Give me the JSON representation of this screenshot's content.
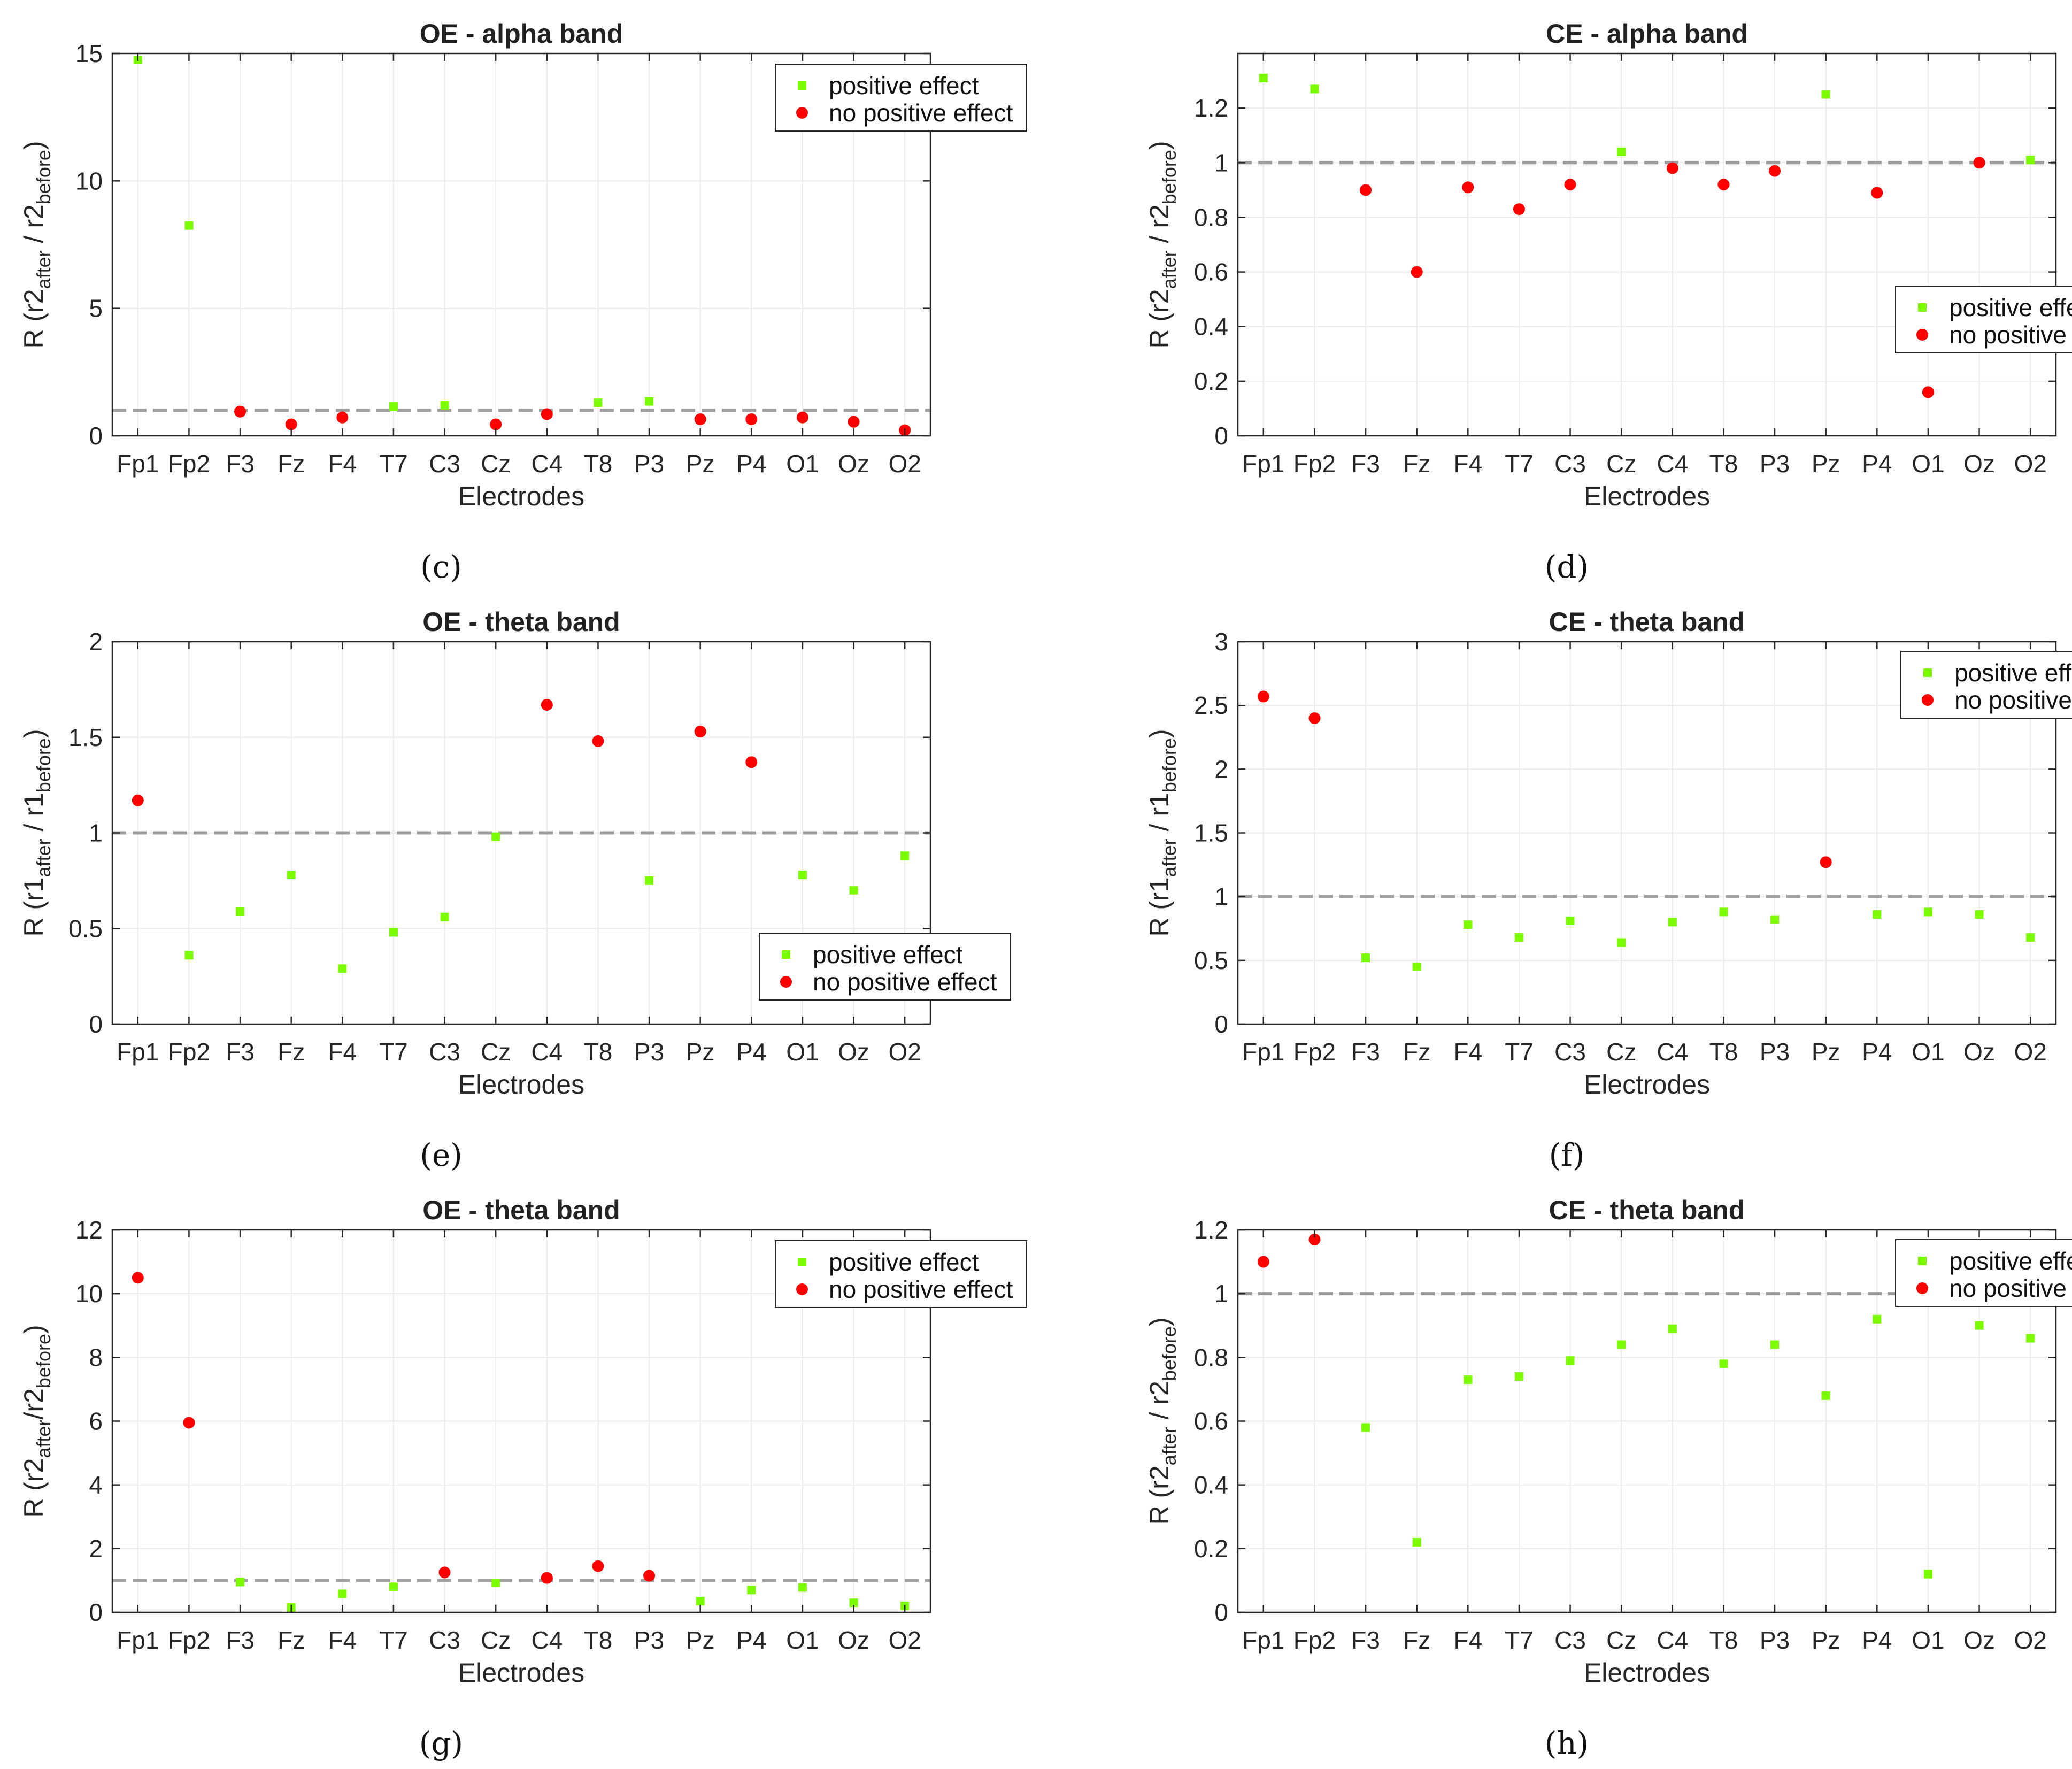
{
  "chart_data": [
    {
      "type": "scatter",
      "title": "OE - alpha band",
      "caption": "(c)",
      "xlabel": "Electrodes",
      "ylabel": {
        "prefix": "R (",
        "r": "r2",
        "sub1": "after",
        "sep": " / ",
        "sub2": "before",
        "suffix": ")"
      },
      "ylim": [
        0,
        15
      ],
      "yticks": [
        0,
        5,
        10,
        15
      ],
      "reference_line": 1,
      "grid": true,
      "legend_position": "top-right",
      "categories": [
        "Fp1",
        "Fp2",
        "F3",
        "Fz",
        "F4",
        "T7",
        "C3",
        "Cz",
        "C4",
        "T8",
        "P3",
        "Pz",
        "P4",
        "O1",
        "Oz",
        "O2"
      ],
      "values": [
        14.75,
        8.25,
        0.95,
        0.45,
        0.72,
        1.15,
        1.2,
        0.45,
        0.85,
        1.3,
        1.35,
        0.65,
        0.65,
        0.72,
        0.55,
        0.22
      ],
      "positive": [
        true,
        true,
        false,
        false,
        false,
        true,
        true,
        false,
        false,
        true,
        true,
        false,
        false,
        false,
        false,
        false
      ],
      "series": [
        {
          "name": "positive effect",
          "color": "#7cfc00"
        },
        {
          "name": "no positive effect",
          "color": "#ff0000"
        }
      ]
    },
    {
      "type": "scatter",
      "title": "CE - alpha band",
      "caption": "(d)",
      "xlabel": "Electrodes",
      "ylabel": {
        "prefix": "R (",
        "r": "r2",
        "sub1": "after",
        "sep": " / ",
        "sub2": "before",
        "suffix": ")"
      },
      "ylim": [
        0,
        1.4
      ],
      "yticks": [
        0,
        0.2,
        0.4,
        0.6,
        0.8,
        1,
        1.2
      ],
      "reference_line": 1,
      "grid": true,
      "legend_position": "lower-right",
      "categories": [
        "Fp1",
        "Fp2",
        "F3",
        "Fz",
        "F4",
        "T7",
        "C3",
        "Cz",
        "C4",
        "T8",
        "P3",
        "Pz",
        "P4",
        "O1",
        "Oz",
        "O2"
      ],
      "values": [
        1.31,
        1.27,
        0.9,
        0.6,
        0.91,
        0.83,
        0.92,
        1.04,
        0.98,
        0.92,
        0.97,
        1.25,
        0.89,
        0.16,
        1.0,
        1.01
      ],
      "positive": [
        true,
        true,
        false,
        false,
        false,
        false,
        false,
        true,
        false,
        false,
        false,
        true,
        false,
        false,
        false,
        true
      ],
      "series": [
        {
          "name": "positive effect",
          "color": "#7cfc00"
        },
        {
          "name": "no positive effect",
          "color": "#ff0000"
        }
      ]
    },
    {
      "type": "scatter",
      "title": "OE - theta band",
      "caption": "(e)",
      "xlabel": "Electrodes",
      "ylabel": {
        "prefix": "R (",
        "r": "r1",
        "sub1": "after",
        "sep": " / ",
        "sub2": "before",
        "suffix": ")"
      },
      "ylim": [
        0,
        2
      ],
      "yticks": [
        0,
        0.5,
        1,
        1.5,
        2
      ],
      "reference_line": 1,
      "grid": true,
      "legend_position": "lower-right",
      "categories": [
        "Fp1",
        "Fp2",
        "F3",
        "Fz",
        "F4",
        "T7",
        "C3",
        "Cz",
        "C4",
        "T8",
        "P3",
        "Pz",
        "P4",
        "O1",
        "Oz",
        "O2"
      ],
      "values": [
        1.17,
        0.36,
        0.59,
        0.78,
        0.29,
        0.48,
        0.56,
        0.98,
        1.67,
        1.48,
        0.75,
        1.53,
        1.37,
        0.78,
        0.7,
        0.88
      ],
      "positive": [
        false,
        true,
        true,
        true,
        true,
        true,
        true,
        true,
        false,
        false,
        true,
        false,
        false,
        true,
        true,
        true
      ],
      "series": [
        {
          "name": "positive effect",
          "color": "#7cfc00"
        },
        {
          "name": "no positive effect",
          "color": "#ff0000"
        }
      ]
    },
    {
      "type": "scatter",
      "title": "CE - theta band",
      "caption": "(f)",
      "xlabel": "Electrodes",
      "ylabel": {
        "prefix": "R (",
        "r": "r1",
        "sub1": "after",
        "sep": " / ",
        "sub2": "before",
        "suffix": ")"
      },
      "ylim": [
        0,
        3
      ],
      "yticks": [
        0,
        0.5,
        1,
        1.5,
        2,
        2.5,
        3
      ],
      "reference_line": 1,
      "grid": true,
      "legend_position": "top-right",
      "categories": [
        "Fp1",
        "Fp2",
        "F3",
        "Fz",
        "F4",
        "T7",
        "C3",
        "Cz",
        "C4",
        "T8",
        "P3",
        "Pz",
        "P4",
        "O1",
        "Oz",
        "O2"
      ],
      "values": [
        2.57,
        2.4,
        0.52,
        0.45,
        0.78,
        0.68,
        0.81,
        0.64,
        0.8,
        0.88,
        0.82,
        1.27,
        0.86,
        0.88,
        0.86,
        0.68
      ],
      "positive": [
        false,
        false,
        true,
        true,
        true,
        true,
        true,
        true,
        true,
        true,
        true,
        false,
        true,
        true,
        true,
        true
      ],
      "series": [
        {
          "name": "positive effect",
          "color": "#7cfc00"
        },
        {
          "name": "no positive effect",
          "color": "#ff0000"
        }
      ]
    },
    {
      "type": "scatter",
      "title": "OE - theta band",
      "caption": "(g)",
      "xlabel": "Electrodes",
      "ylabel": {
        "prefix": "R (",
        "r": "r2",
        "sub1": "after",
        "sep": "/",
        "sub2": "before",
        "suffix": ")"
      },
      "ylim": [
        0,
        12
      ],
      "yticks": [
        0,
        2,
        4,
        6,
        8,
        10,
        12
      ],
      "reference_line": 1,
      "grid": true,
      "legend_position": "top-right",
      "categories": [
        "Fp1",
        "Fp2",
        "F3",
        "Fz",
        "F4",
        "T7",
        "C3",
        "Cz",
        "C4",
        "T8",
        "P3",
        "Pz",
        "P4",
        "O1",
        "Oz",
        "O2"
      ],
      "values": [
        10.5,
        5.95,
        0.95,
        0.15,
        0.58,
        0.8,
        1.25,
        0.92,
        1.08,
        1.45,
        1.15,
        0.35,
        0.7,
        0.78,
        0.3,
        0.2
      ],
      "positive": [
        false,
        false,
        true,
        true,
        true,
        true,
        false,
        true,
        false,
        false,
        false,
        true,
        true,
        true,
        true,
        true
      ],
      "series": [
        {
          "name": "positive effect",
          "color": "#7cfc00"
        },
        {
          "name": "no positive effect",
          "color": "#ff0000"
        }
      ]
    },
    {
      "type": "scatter",
      "title": "CE - theta band",
      "caption": "(h)",
      "xlabel": "Electrodes",
      "ylabel": {
        "prefix": "R (",
        "r": "r2",
        "sub1": "after",
        "sep": " / ",
        "sub2": "before",
        "suffix": ")"
      },
      "ylim": [
        0,
        1.2
      ],
      "yticks": [
        0,
        0.2,
        0.4,
        0.6,
        0.8,
        1,
        1.2
      ],
      "reference_line": 1,
      "grid": true,
      "legend_position": "top-right",
      "categories": [
        "Fp1",
        "Fp2",
        "F3",
        "Fz",
        "F4",
        "T7",
        "C3",
        "Cz",
        "C4",
        "T8",
        "P3",
        "Pz",
        "P4",
        "O1",
        "Oz",
        "O2"
      ],
      "values": [
        1.1,
        1.17,
        0.58,
        0.22,
        0.73,
        0.74,
        0.79,
        0.84,
        0.89,
        0.78,
        0.84,
        0.68,
        0.92,
        0.12,
        0.9,
        0.86
      ],
      "positive": [
        false,
        false,
        true,
        true,
        true,
        true,
        true,
        true,
        true,
        true,
        true,
        true,
        true,
        true,
        true,
        true
      ],
      "series": [
        {
          "name": "positive effect",
          "color": "#7cfc00"
        },
        {
          "name": "no positive effect",
          "color": "#ff0000"
        }
      ]
    }
  ]
}
